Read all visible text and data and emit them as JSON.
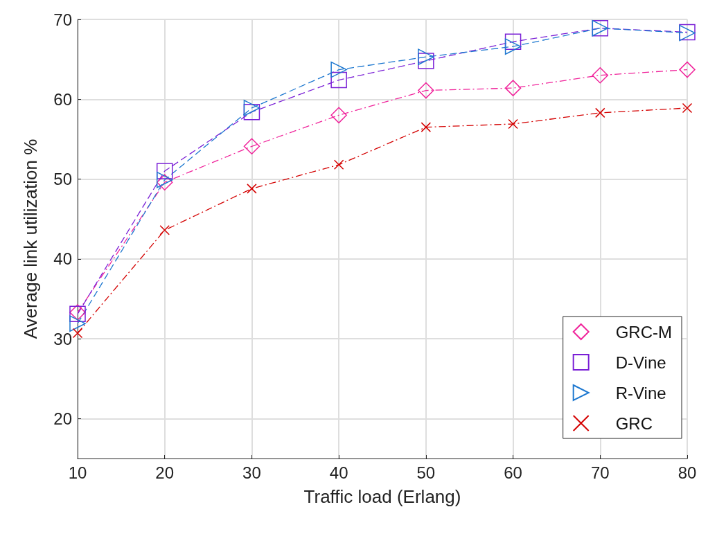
{
  "chart_data": {
    "type": "line",
    "xlabel": "Traffic load (Erlang)",
    "ylabel": "Average link utilization %",
    "x": [
      10,
      20,
      30,
      40,
      50,
      60,
      70,
      80
    ],
    "series": [
      {
        "name": "GRC-M",
        "color": "#f0249b",
        "marker": "diamond",
        "line_style": "dashdot",
        "values": [
          33.3,
          49.6,
          54.1,
          58.0,
          61.1,
          61.4,
          63.0,
          63.7
        ]
      },
      {
        "name": "D-Vine",
        "color": "#7a1fd6",
        "marker": "square",
        "line_style": "dashed",
        "values": [
          33.1,
          51.0,
          58.4,
          62.4,
          64.8,
          67.2,
          68.9,
          68.4
        ]
      },
      {
        "name": "R-Vine",
        "color": "#1e78d0",
        "marker": "triangle",
        "line_style": "dashed",
        "values": [
          31.9,
          49.9,
          58.9,
          63.7,
          65.3,
          66.6,
          68.9,
          68.3
        ]
      },
      {
        "name": "GRC",
        "color": "#d40000",
        "marker": "cross",
        "line_style": "dashdot",
        "values": [
          30.7,
          43.6,
          48.8,
          51.8,
          56.5,
          56.9,
          58.3,
          58.9
        ]
      }
    ],
    "xlim": [
      10,
      80
    ],
    "xticks": [
      10,
      20,
      30,
      40,
      50,
      60,
      70,
      80
    ],
    "ylim": [
      15,
      70
    ],
    "yticks": [
      20,
      30,
      40,
      50,
      60,
      70
    ],
    "grid": true,
    "legend": "bottom right"
  }
}
